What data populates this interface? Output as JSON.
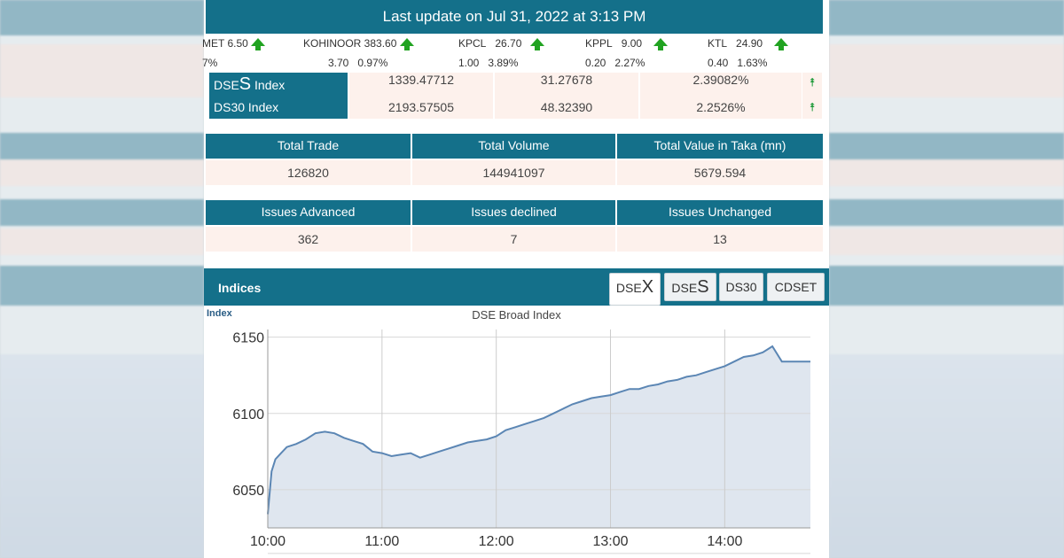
{
  "header": {
    "title": "Last update on Jul 31, 2022 at 3:13 PM"
  },
  "ticker": [
    {
      "name": "MET 6.50",
      "change": "",
      "pct": "7%"
    },
    {
      "name": "KOHINOOR 383.60",
      "change": "3.70",
      "pct": "0.97%"
    },
    {
      "name": "KPCL",
      "price": "26.70",
      "change": "1.00",
      "pct": "3.89%"
    },
    {
      "name": "KPPL",
      "price": "9.00",
      "change": "0.20",
      "pct": "2.27%"
    },
    {
      "name": "KTL",
      "price": "24.90",
      "change": "0.40",
      "pct": "1.63%"
    }
  ],
  "index_table": [
    {
      "name_prefix": "DSE",
      "name_big": "S",
      "name_suffix": " Index",
      "value": "1339.47712",
      "change": "31.27678",
      "pct": "2.39082%",
      "trend": "up"
    },
    {
      "name_prefix": "DS30 Index",
      "name_big": "",
      "name_suffix": "",
      "value": "2193.57505",
      "change": "48.32390",
      "pct": "2.2526%",
      "trend": "up"
    }
  ],
  "trade_stats": {
    "headers": [
      "Total Trade",
      "Total Volume",
      "Total Value in Taka (mn)"
    ],
    "values": [
      "126820",
      "144941097",
      "5679.594"
    ]
  },
  "issue_stats": {
    "headers": [
      "Issues Advanced",
      "Issues declined",
      "Issues Unchanged"
    ],
    "values": [
      "362",
      "7",
      "13"
    ]
  },
  "indices_panel": {
    "title": "Indices",
    "tabs": [
      {
        "prefix": "DSE",
        "big": "X",
        "active": true
      },
      {
        "prefix": "DSE",
        "big": "S",
        "active": false
      },
      {
        "prefix": "DS30",
        "big": "",
        "active": false
      },
      {
        "prefix": "CDSET",
        "big": "",
        "active": false
      }
    ]
  },
  "chart_data": {
    "type": "area",
    "title": "DSE Broad Index",
    "ylabel": "Index",
    "xlabel": "",
    "x_ticks": [
      "10:00",
      "11:00",
      "12:00",
      "13:00",
      "14:00"
    ],
    "y_ticks": [
      6050,
      6100,
      6150
    ],
    "ylim": [
      6025,
      6155
    ],
    "x_minutes_range": [
      0,
      285
    ],
    "grid": true,
    "colors": {
      "line": "#5b86b4",
      "fill": "#dfe6ef"
    },
    "series": [
      {
        "x": [
          0,
          2,
          4,
          7,
          10,
          15,
          20,
          25,
          30,
          35,
          40,
          45,
          50,
          55,
          60,
          65,
          70,
          75,
          80,
          85,
          90,
          95,
          100,
          105,
          110,
          115,
          120,
          125,
          130,
          135,
          140,
          145,
          150,
          155,
          160,
          165,
          170,
          175,
          180,
          185,
          190,
          195,
          200,
          205,
          210,
          215,
          220,
          225,
          230,
          235,
          240,
          245,
          250,
          255,
          260,
          265,
          270,
          275,
          280,
          285
        ],
        "y": [
          6034,
          6062,
          6070,
          6074,
          6078,
          6080,
          6083,
          6087,
          6088,
          6087,
          6084,
          6082,
          6080,
          6075,
          6074,
          6072,
          6073,
          6074,
          6071,
          6073,
          6075,
          6077,
          6079,
          6081,
          6082,
          6083,
          6085,
          6089,
          6091,
          6093,
          6095,
          6097,
          6100,
          6103,
          6106,
          6108,
          6110,
          6111,
          6112,
          6114,
          6116,
          6116,
          6118,
          6119,
          6121,
          6122,
          6124,
          6125,
          6127,
          6129,
          6131,
          6134,
          6137,
          6138,
          6140,
          6144,
          6134,
          6134,
          6134,
          6134
        ]
      }
    ]
  }
}
